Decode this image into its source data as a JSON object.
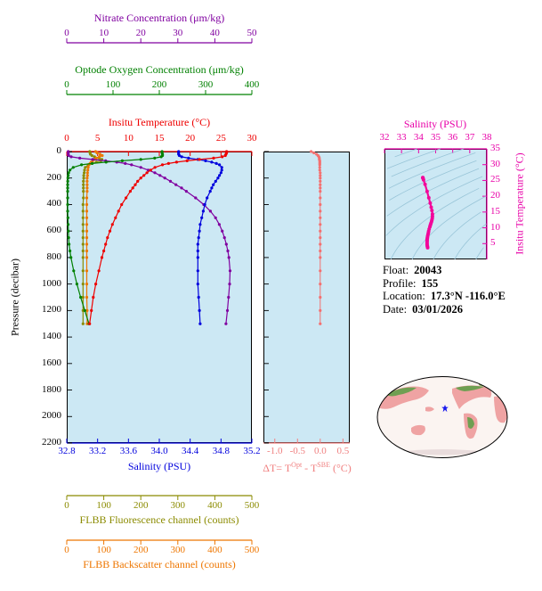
{
  "figure": {
    "bg": "#ffffff",
    "panel_bg": "#cce8f4"
  },
  "info": {
    "float": {
      "label": "Float:",
      "value": "20043"
    },
    "profile": {
      "label": "Profile:",
      "value": "155"
    },
    "location": {
      "label": "Location:",
      "value": "17.3°N  -116.0°E"
    },
    "date": {
      "label": "Date:",
      "value": "03/01/2026"
    }
  },
  "axes": {
    "nitrate": {
      "title": "Nitrate Concentration (μm/kg)",
      "ticks": [
        0,
        10,
        20,
        30,
        40,
        50
      ],
      "min": 0,
      "max": 50,
      "color": "#8000A0"
    },
    "oxygen": {
      "title": "Optode Oxygen Concentration (μm/kg)",
      "ticks": [
        0,
        100,
        200,
        300,
        400
      ],
      "min": 0,
      "max": 400,
      "color": "#008000"
    },
    "temperature": {
      "title": "Insitu Temperature (°C)",
      "ticks": [
        0,
        5,
        10,
        15,
        20,
        25,
        30
      ],
      "min": 0,
      "max": 30,
      "color": "#EE0000"
    },
    "salinity": {
      "title": "Salinity (PSU)",
      "ticks": [
        "32.8",
        "33.2",
        "33.6",
        "34.0",
        "34.4",
        "34.8",
        "35.2"
      ],
      "min": 32.8,
      "max": 35.2,
      "color": "#0000DD"
    },
    "fluorescence": {
      "title": "FLBB Fluorescence channel (counts)",
      "ticks": [
        0,
        100,
        200,
        300,
        400,
        500
      ],
      "min": 0,
      "max": 500,
      "color": "#8B8B00"
    },
    "backscatter": {
      "title": "FLBB Backscatter channel (counts)",
      "ticks": [
        0,
        100,
        200,
        300,
        400,
        500
      ],
      "min": 0,
      "max": 500,
      "color": "#EE7600"
    },
    "pressure": {
      "title": "Pressure (decibar)",
      "ticks": [
        0,
        200,
        400,
        600,
        800,
        1000,
        1200,
        1400,
        1600,
        1800,
        2000,
        2200
      ],
      "min": 0,
      "max": 2200,
      "color": "#000000"
    },
    "delta_t": {
      "title": "ΔT= TOpt - TSBE (°C)",
      "title_parts": {
        "p1": "ΔT= T",
        "s1": "Opt",
        "p2": " - T",
        "s2": "SBE",
        "p3": " (°C)"
      },
      "ticks": [
        "-1.0",
        "-0.5",
        "0.0",
        "0.5"
      ],
      "min": -1.25,
      "max": 0.65,
      "color": "#F08080"
    },
    "ts_salinity": {
      "title": "Salinity (PSU)",
      "ticks": [
        32,
        33,
        34,
        35,
        36,
        37,
        38
      ],
      "min": 32,
      "max": 38,
      "color": "#E800A8"
    },
    "ts_temperature": {
      "title": "Insitu Temperature (°C)",
      "ticks": [
        35,
        30,
        25,
        20,
        15,
        10,
        5
      ],
      "min": 0,
      "max": 35,
      "color": "#E800A8"
    }
  },
  "map": {
    "marker_symbol": "star",
    "marker_color": "#1a1aee"
  },
  "chart_data": [
    {
      "id": "main_profile",
      "type": "line",
      "ylabel": "Pressure (decibar)",
      "ylim": [
        0,
        2200
      ],
      "pressure": [
        0,
        10,
        20,
        30,
        40,
        50,
        60,
        70,
        80,
        90,
        100,
        120,
        140,
        160,
        180,
        200,
        225,
        250,
        275,
        300,
        350,
        400,
        450,
        500,
        550,
        600,
        650,
        700,
        750,
        800,
        900,
        1000,
        1100,
        1200,
        1300
      ],
      "series": [
        {
          "name": "FLBB Fluorescence channel",
          "axis": "fluorescence",
          "color": "#8B8B00",
          "values": [
            62,
            63,
            64,
            68,
            75,
            88,
            95,
            92,
            80,
            68,
            58,
            50,
            48,
            47,
            46,
            46,
            45,
            45,
            45,
            45,
            45,
            44,
            44,
            44,
            44,
            44,
            44,
            44,
            44,
            44,
            44,
            44,
            44,
            44,
            44
          ]
        },
        {
          "name": "FLBB Backscatter channel",
          "axis": "backscatter",
          "color": "#EE7600",
          "values": [
            78,
            82,
            90,
            96,
            88,
            80,
            74,
            70,
            66,
            63,
            60,
            58,
            57,
            56,
            56,
            55,
            55,
            55,
            55,
            55,
            54,
            54,
            54,
            54,
            54,
            54,
            54,
            54,
            54,
            54,
            54,
            54,
            54,
            55,
            55
          ]
        },
        {
          "name": "Nitrate Concentration",
          "axis": "nitrate",
          "color": "#8000A0",
          "values": [
            0.4,
            0.4,
            0.4,
            0.5,
            1.2,
            3.5,
            7,
            10.5,
            13.5,
            15.8,
            17.5,
            20,
            22,
            23.8,
            25.2,
            26.5,
            28,
            29.5,
            31,
            32.3,
            34.8,
            37,
            38.8,
            40.2,
            41.2,
            42,
            42.6,
            43.1,
            43.5,
            43.8,
            44.1,
            44.0,
            43.7,
            43.4,
            43.0
          ]
        },
        {
          "name": "Optode Oxygen Concentration",
          "axis": "oxygen",
          "color": "#008000",
          "values": [
            206,
            206,
            207,
            207,
            204,
            190,
            160,
            120,
            85,
            55,
            32,
            14,
            7,
            4,
            3,
            2.5,
            2.2,
            2,
            2,
            2,
            2,
            2,
            2,
            2.5,
            3,
            3.5,
            4,
            5,
            7,
            9,
            15,
            22,
            30,
            39,
            48
          ]
        },
        {
          "name": "Salinity",
          "axis": "salinity",
          "color": "#0000DD",
          "values": [
            34.25,
            34.25,
            34.25,
            34.26,
            34.29,
            34.38,
            34.5,
            34.6,
            34.68,
            34.74,
            34.78,
            34.81,
            34.81,
            34.8,
            34.78,
            34.76,
            34.73,
            34.7,
            34.68,
            34.66,
            34.62,
            34.59,
            34.57,
            34.55,
            34.53,
            34.52,
            34.51,
            34.5,
            34.5,
            34.5,
            34.5,
            34.5,
            34.51,
            34.52,
            34.53
          ]
        },
        {
          "name": "Insitu Temperature",
          "axis": "temperature",
          "color": "#EE0000",
          "values": [
            25.9,
            25.9,
            25.8,
            25.7,
            25.2,
            23.8,
            21.5,
            19.5,
            17.8,
            16.5,
            15.5,
            14.3,
            13.6,
            13.0,
            12.5,
            12.0,
            11.5,
            11.1,
            10.7,
            10.3,
            9.6,
            8.9,
            8.4,
            7.9,
            7.4,
            7.0,
            6.6,
            6.3,
            6.0,
            5.7,
            5.2,
            4.7,
            4.3,
            4.0,
            3.7
          ]
        }
      ]
    },
    {
      "id": "delta_t",
      "type": "line",
      "xlabel": "ΔT= TOpt - TSBE (°C)",
      "x_axis": {
        "min": -1.25,
        "max": 0.65,
        "ticks": [
          "-1.0",
          "-0.5",
          "0.0",
          "0.5"
        ]
      },
      "color": "#F47070",
      "pressure": [
        0,
        10,
        20,
        30,
        40,
        50,
        60,
        70,
        80,
        90,
        100,
        120,
        140,
        160,
        180,
        200,
        225,
        250,
        275,
        300,
        350,
        400,
        450,
        500,
        550,
        600,
        650,
        700,
        750,
        800,
        900,
        1000,
        1100,
        1200,
        1300
      ],
      "values": [
        -0.2,
        -0.14,
        -0.08,
        -0.05,
        -0.03,
        -0.02,
        -0.02,
        -0.01,
        -0.01,
        -0.01,
        -0.01,
        -0.01,
        -0.01,
        0,
        0,
        0,
        0,
        0,
        0,
        0,
        0,
        0,
        0,
        0,
        0,
        0,
        0,
        0,
        0,
        0,
        0,
        0,
        0,
        0,
        0
      ]
    },
    {
      "id": "ts_diagram",
      "type": "scatter",
      "xlabel": "Salinity (PSU)",
      "ylabel": "Insitu Temperature (°C)",
      "xlim": [
        32,
        38
      ],
      "ylim": [
        0,
        35
      ],
      "color": "#F2079A",
      "contours": {
        "name": "potential density isopycnals",
        "values": [
          18,
          19,
          20,
          21,
          22,
          23,
          24,
          25,
          26,
          27,
          28,
          29,
          30
        ],
        "color": "#99C5D8"
      },
      "salinity": [
        34.25,
        34.25,
        34.25,
        34.26,
        34.29,
        34.38,
        34.5,
        34.6,
        34.68,
        34.74,
        34.78,
        34.81,
        34.81,
        34.8,
        34.78,
        34.76,
        34.73,
        34.7,
        34.68,
        34.66,
        34.62,
        34.59,
        34.57,
        34.55,
        34.53,
        34.52,
        34.51,
        34.5,
        34.5,
        34.5,
        34.5,
        34.5,
        34.51,
        34.52,
        34.53
      ],
      "temperature": [
        25.9,
        25.9,
        25.8,
        25.7,
        25.2,
        23.8,
        21.5,
        19.5,
        17.8,
        16.5,
        15.5,
        14.3,
        13.6,
        13.0,
        12.5,
        12.0,
        11.5,
        11.1,
        10.7,
        10.3,
        9.6,
        8.9,
        8.4,
        7.9,
        7.4,
        7.0,
        6.6,
        6.3,
        6.0,
        5.7,
        5.2,
        4.7,
        4.3,
        4.0,
        3.7
      ]
    }
  ]
}
